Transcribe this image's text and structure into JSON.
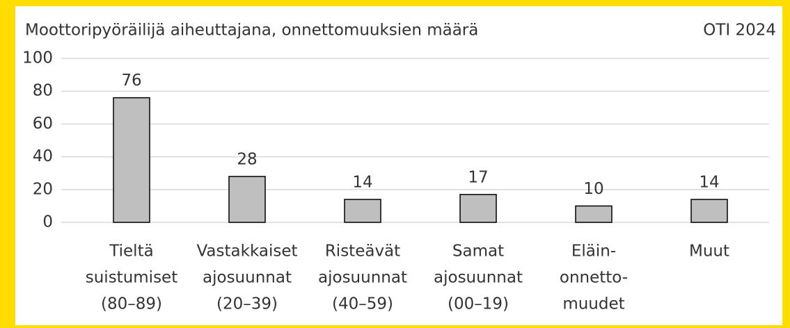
{
  "chart_data": {
    "type": "bar",
    "title": "Moottoripyöräilijä aiheuttajana, onnettomuuksien määrä",
    "source": "OTI 2024",
    "categories": [
      [
        "Tieltä",
        "suistumiset",
        "(80–89)"
      ],
      [
        "Vastakkaiset",
        "ajosuunnat",
        "(20–39)"
      ],
      [
        "Risteävät",
        "ajosuunnat",
        "(40–59)"
      ],
      [
        "Samat",
        "ajosuunnat",
        "(00–19)"
      ],
      [
        "Eläin-",
        "onnetto-",
        "muudet"
      ],
      [
        "Muut"
      ]
    ],
    "values": [
      76,
      28,
      14,
      17,
      10,
      14
    ],
    "color": "#bfbfbf",
    "ylim": [
      0,
      100
    ],
    "yticks": [
      0,
      20,
      40,
      60,
      80,
      100
    ],
    "grid": true
  }
}
